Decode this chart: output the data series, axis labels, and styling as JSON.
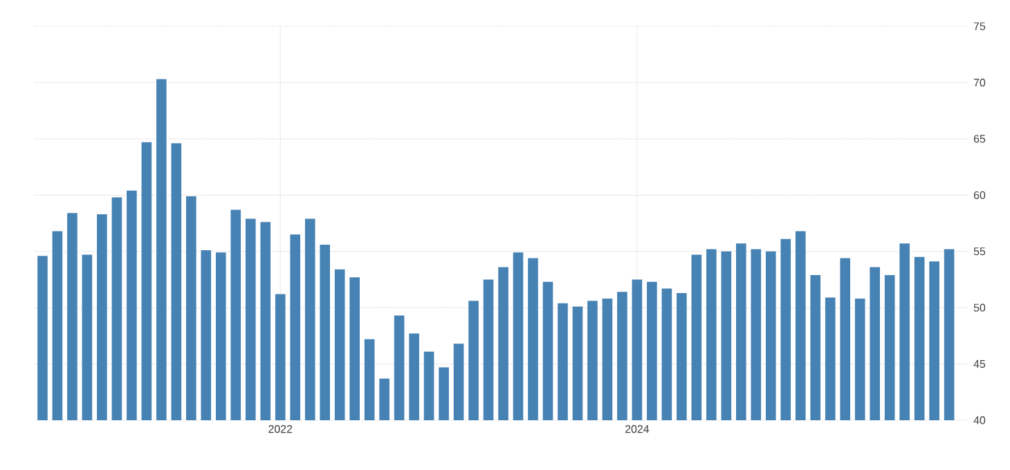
{
  "chart_data": {
    "type": "bar",
    "color": "#4682b4",
    "grid": true,
    "x": [
      "2020-09",
      "2020-10",
      "2020-11",
      "2020-12",
      "2021-01",
      "2021-02",
      "2021-03",
      "2021-04",
      "2021-05",
      "2021-06",
      "2021-07",
      "2021-08",
      "2021-09",
      "2021-10",
      "2021-11",
      "2021-12",
      "2022-01",
      "2022-02",
      "2022-03",
      "2022-04",
      "2022-05",
      "2022-06",
      "2022-07",
      "2022-08",
      "2022-09",
      "2022-10",
      "2022-11",
      "2022-12",
      "2023-01",
      "2023-02",
      "2023-03",
      "2023-04",
      "2023-05",
      "2023-06",
      "2023-07",
      "2023-08",
      "2023-09",
      "2023-10",
      "2023-11",
      "2023-12",
      "2024-01",
      "2024-02",
      "2024-03",
      "2024-04",
      "2024-05",
      "2024-06",
      "2024-07",
      "2024-08",
      "2024-09",
      "2024-10",
      "2024-11",
      "2024-12",
      "2025-01",
      "2025-02",
      "2025-03",
      "2025-04",
      "2025-05",
      "2025-06",
      "2025-07",
      "2025-08",
      "2025-09",
      "2025-10"
    ],
    "values": [
      54.6,
      56.8,
      58.4,
      54.7,
      58.3,
      59.8,
      60.4,
      64.7,
      70.3,
      64.6,
      59.9,
      55.1,
      54.9,
      58.7,
      57.9,
      57.6,
      51.2,
      56.5,
      57.9,
      55.6,
      53.4,
      52.7,
      47.2,
      43.7,
      49.3,
      47.7,
      46.1,
      44.7,
      46.8,
      50.6,
      52.5,
      53.6,
      54.9,
      54.4,
      52.3,
      50.4,
      50.1,
      50.6,
      50.8,
      51.4,
      52.5,
      52.3,
      51.7,
      51.3,
      54.7,
      55.2,
      55.0,
      55.7,
      55.2,
      55.0,
      56.1,
      56.8,
      52.9,
      50.9,
      54.4,
      50.8,
      53.6,
      52.9,
      55.7,
      54.5,
      54.1,
      55.2
    ],
    "xlim": [
      "2020-08-15",
      "2025-11-10"
    ],
    "xticks": [
      "2022",
      "2024"
    ],
    "ylim": [
      40,
      75
    ],
    "yticks": [
      40,
      45,
      50,
      55,
      60,
      65,
      70,
      75
    ]
  }
}
